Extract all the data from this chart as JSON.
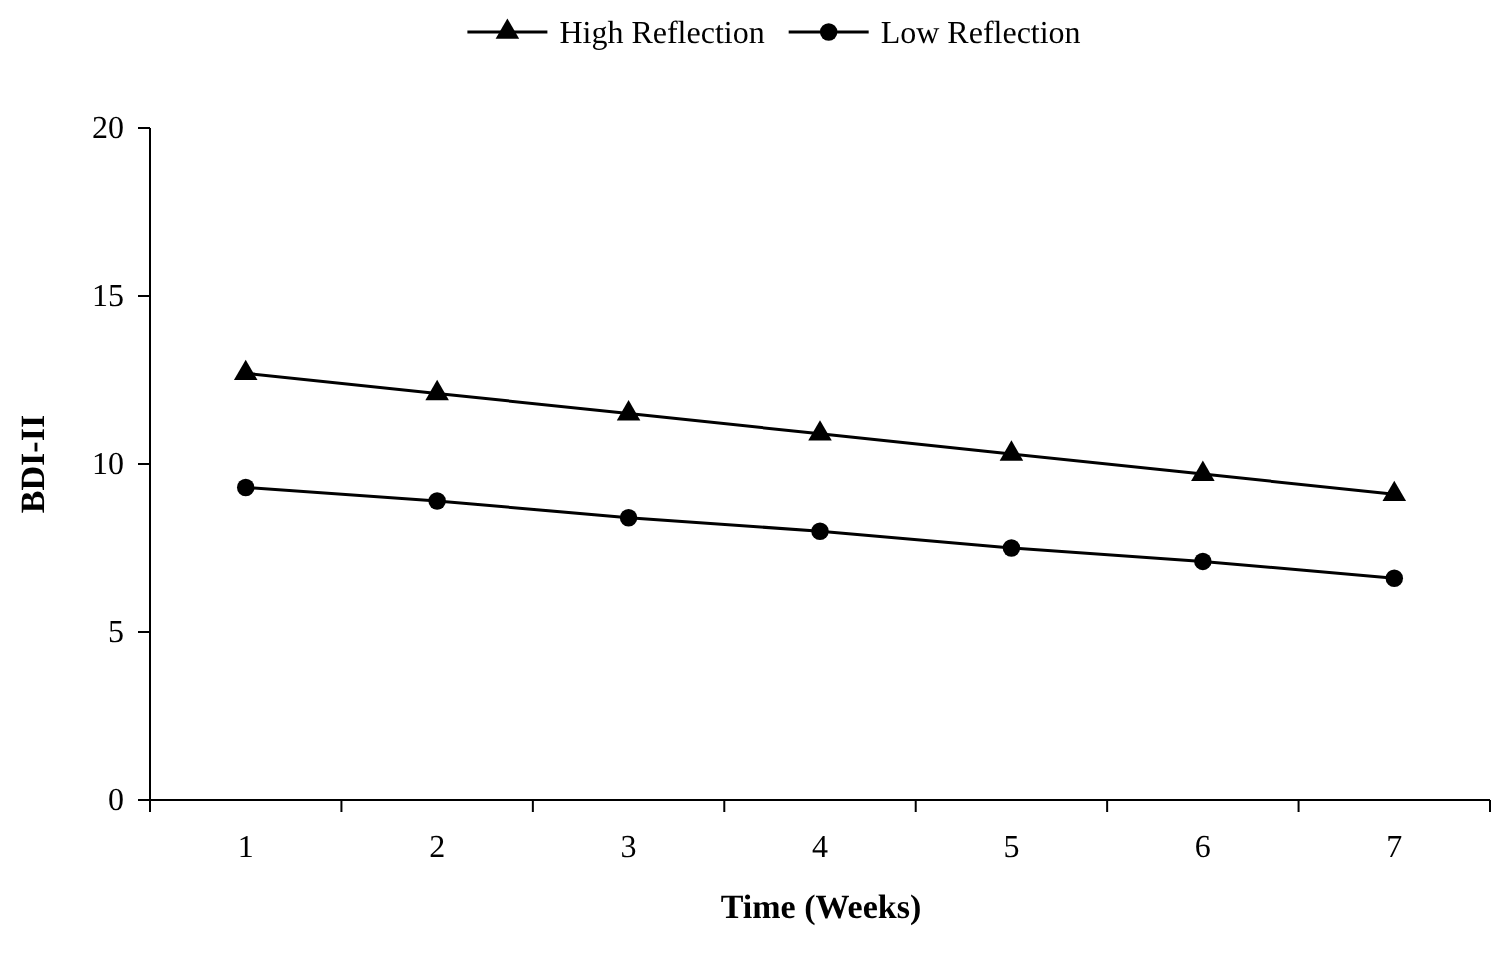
{
  "chart_data": {
    "type": "line",
    "xlabel": "Time (Weeks)",
    "ylabel": "BDI-II",
    "categories": [
      "1",
      "2",
      "3",
      "4",
      "5",
      "6",
      "7"
    ],
    "series": [
      {
        "name": "High Reflection",
        "color": "#000000",
        "marker": "triangle",
        "values": [
          12.7,
          12.1,
          11.5,
          10.9,
          10.3,
          9.7,
          9.1
        ]
      },
      {
        "name": "Low Reflection",
        "color": "#000000",
        "marker": "circle",
        "values": [
          9.3,
          8.9,
          8.4,
          8.0,
          7.5,
          7.1,
          6.6
        ]
      }
    ],
    "ylim": [
      0,
      20
    ],
    "yticks": [
      0,
      5,
      10,
      15,
      20
    ],
    "grid": false,
    "legend": "top",
    "line_style": "solid"
  }
}
